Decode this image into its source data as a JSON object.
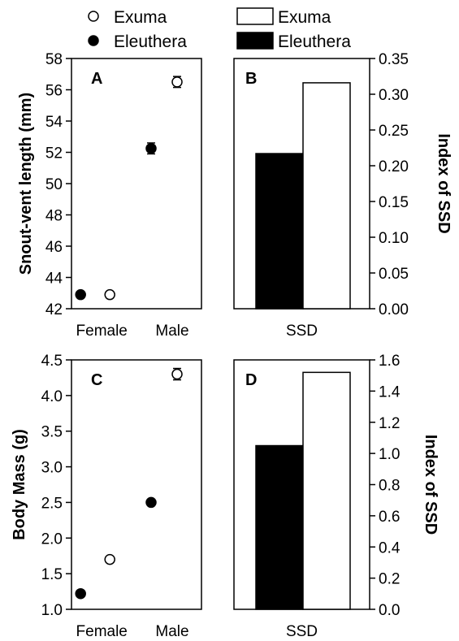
{
  "legend": {
    "left": [
      {
        "label": "Exuma",
        "marker": "open-circle"
      },
      {
        "label": "Eleuthera",
        "marker": "filled-circle"
      }
    ],
    "right": [
      {
        "label": "Exuma",
        "marker": "open-bar"
      },
      {
        "label": "Eleuthera",
        "marker": "filled-bar"
      }
    ]
  },
  "colors": {
    "exuma_fill": "#ffffff",
    "eleuthera_fill": "#000000",
    "stroke": "#000000"
  },
  "chart_data": [
    {
      "panel": "A",
      "type": "scatter",
      "ylabel": "Snout-vent length (mm)",
      "categories": [
        "Female",
        "Male"
      ],
      "ylim": [
        42,
        58
      ],
      "yticks": [
        "42",
        "44",
        "46",
        "48",
        "50",
        "52",
        "54",
        "56",
        "58"
      ],
      "series": [
        {
          "name": "Eleuthera",
          "values": [
            42.9,
            52.25
          ],
          "error": [
            0.1,
            0.35
          ]
        },
        {
          "name": "Exuma",
          "values": [
            42.9,
            56.5
          ],
          "error": [
            0.1,
            0.35
          ]
        }
      ]
    },
    {
      "panel": "B",
      "type": "bar",
      "ylabel": "Index of SSD",
      "categories": [
        "SSD"
      ],
      "ylim": [
        0,
        0.35
      ],
      "yticks": [
        "0.00",
        "0.05",
        "0.10",
        "0.15",
        "0.20",
        "0.25",
        "0.30",
        "0.35"
      ],
      "series": [
        {
          "name": "Eleuthera",
          "values": [
            0.217
          ]
        },
        {
          "name": "Exuma",
          "values": [
            0.316
          ]
        }
      ]
    },
    {
      "panel": "C",
      "type": "scatter",
      "ylabel": "Body Mass (g)",
      "categories": [
        "Female",
        "Male"
      ],
      "ylim": [
        1.0,
        4.5
      ],
      "yticks": [
        "1.0",
        "1.5",
        "2.0",
        "2.5",
        "3.0",
        "3.5",
        "4.0",
        "4.5"
      ],
      "series": [
        {
          "name": "Eleuthera",
          "values": [
            1.22,
            2.5
          ],
          "error": [
            0.03,
            0.04
          ]
        },
        {
          "name": "Exuma",
          "values": [
            1.7,
            4.3
          ],
          "error": [
            0.03,
            0.08
          ]
        }
      ]
    },
    {
      "panel": "D",
      "type": "bar",
      "ylabel": "Index of SSD",
      "categories": [
        "SSD"
      ],
      "ylim": [
        0,
        1.6
      ],
      "yticks": [
        "0.0",
        "0.2",
        "0.4",
        "0.6",
        "0.8",
        "1.0",
        "1.2",
        "1.4",
        "1.6"
      ],
      "series": [
        {
          "name": "Eleuthera",
          "values": [
            1.05
          ]
        },
        {
          "name": "Exuma",
          "values": [
            1.52
          ]
        }
      ]
    }
  ]
}
